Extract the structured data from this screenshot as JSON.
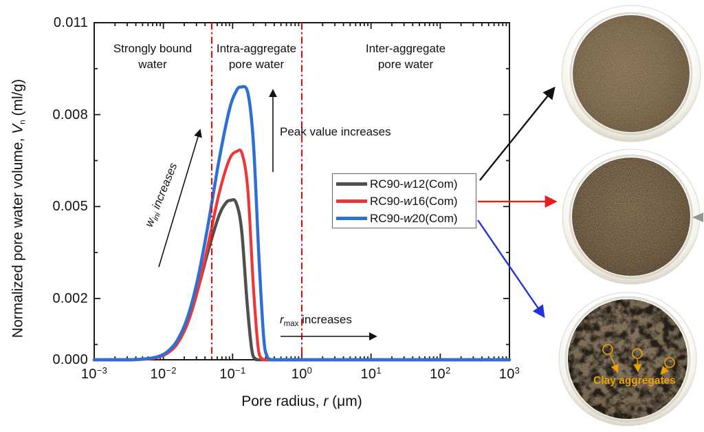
{
  "page": {
    "background": "#ffffff"
  },
  "chart_data": {
    "type": "line",
    "x_scale": "log",
    "x_range_log": [
      -3,
      3
    ],
    "y_range": [
      0,
      0.011
    ],
    "xlabel": "Pore radius, r (μm)",
    "ylabel": "Normalized pore water volume, Vn (ml/g)",
    "x_axis_label": {
      "pre": "Pore radius, ",
      "var": "r",
      "post": " (μm)"
    },
    "y_axis_label": {
      "pre": "Normalized pore water volume, ",
      "var": "V",
      "sub": "n",
      "post": " (ml/g)"
    },
    "x_ticks": [
      {
        "base": "10",
        "exp": "−3"
      },
      {
        "base": "10",
        "exp": "−2"
      },
      {
        "base": "10",
        "exp": "−1"
      },
      {
        "base": "10",
        "exp": "0"
      },
      {
        "base": "10",
        "exp": "1"
      },
      {
        "base": "10",
        "exp": "2"
      },
      {
        "base": "10",
        "exp": "3"
      }
    ],
    "y_ticks": [
      {
        "value": 0.0,
        "label": "0.000"
      },
      {
        "value": 0.002,
        "label": "0.002"
      },
      {
        "value": 0.005,
        "label": "0.005"
      },
      {
        "value": 0.008,
        "label": "0.008"
      },
      {
        "value": 0.011,
        "label": "0.011"
      }
    ],
    "y_minor_ticks": [
      0.0005,
      0.0035,
      0.0065,
      0.0095
    ],
    "grid": "off",
    "legend_position": "inside right-center",
    "region_dividers_um": [
      0.05,
      1
    ],
    "divider_color": "#f40000",
    "regions": [
      {
        "line1": "Strongly bound",
        "line2": "water"
      },
      {
        "line1": "Intra-aggregate",
        "line2": "pore water"
      },
      {
        "line1": "Inter-aggregate",
        "line2": "pore water"
      }
    ],
    "annotations": {
      "wini": {
        "var": "w",
        "sub": "ini",
        "post": " increases"
      },
      "peak": {
        "text": "Peak value increases"
      },
      "rmax": {
        "var": "r",
        "sub": "max",
        "post": " increases"
      }
    },
    "series": [
      {
        "label": {
          "pre": "RC90-",
          "var": "w",
          "post": "12(Com)"
        },
        "color": "#4f4f4f",
        "peak_r_um": 0.093,
        "peak_value_ml_g": 0.0052,
        "points": [
          [
            -3,
            0
          ],
          [
            -2.5,
            0
          ],
          [
            -2.2,
            4e-05
          ],
          [
            -2.1,
            8e-05
          ],
          [
            -1.95,
            0.00024
          ],
          [
            -1.8,
            0.0006
          ],
          [
            -1.65,
            0.00128
          ],
          [
            -1.5,
            0.00232
          ],
          [
            -1.35,
            0.00358
          ],
          [
            -1.2,
            0.00468
          ],
          [
            -1.1,
            0.00511
          ],
          [
            -1.03,
            0.0052
          ],
          [
            -0.95,
            0.00513
          ],
          [
            -0.87,
            0.00424
          ],
          [
            -0.79,
            0.00184
          ],
          [
            -0.72,
            0.00029
          ],
          [
            -0.66,
            2e-05
          ],
          [
            -0.6,
            0
          ],
          [
            0,
            0
          ],
          [
            1,
            0
          ],
          [
            2,
            0
          ],
          [
            3,
            0
          ]
        ]
      },
      {
        "label": {
          "pre": "RC90-",
          "var": "w",
          "post": "16(Com)"
        },
        "color": "#ee3637",
        "peak_r_um": 0.115,
        "peak_value_ml_g": 0.0068,
        "points": [
          [
            -3,
            0
          ],
          [
            -2.5,
            0
          ],
          [
            -2.2,
            3e-05
          ],
          [
            -2.1,
            7e-05
          ],
          [
            -1.95,
            0.0002
          ],
          [
            -1.8,
            0.00052
          ],
          [
            -1.65,
            0.00119
          ],
          [
            -1.5,
            0.0023
          ],
          [
            -1.35,
            0.0038
          ],
          [
            -1.2,
            0.00538
          ],
          [
            -1.05,
            0.00652
          ],
          [
            -0.94,
            0.0068
          ],
          [
            -0.86,
            0.00671
          ],
          [
            -0.78,
            0.00554
          ],
          [
            -0.7,
            0.00241
          ],
          [
            -0.63,
            0.00038
          ],
          [
            -0.57,
            3e-05
          ],
          [
            -0.52,
            0
          ],
          [
            0,
            0
          ],
          [
            1,
            0
          ],
          [
            2,
            0
          ],
          [
            3,
            0
          ]
        ]
      },
      {
        "label": {
          "pre": "RC90-",
          "var": "w",
          "post": "20(Com)"
        },
        "color": "#2e6fd6",
        "peak_r_um": 0.13,
        "peak_value_ml_g": 0.0089,
        "points": [
          [
            -3,
            0
          ],
          [
            -2.5,
            0
          ],
          [
            -2.3,
            2e-05
          ],
          [
            -2.1,
            9e-05
          ],
          [
            -1.95,
            0.00025
          ],
          [
            -1.8,
            0.00063
          ],
          [
            -1.65,
            0.00139
          ],
          [
            -1.5,
            0.00268
          ],
          [
            -1.35,
            0.00446
          ],
          [
            -1.2,
            0.00646
          ],
          [
            -1.05,
            0.00813
          ],
          [
            -0.95,
            0.00876
          ],
          [
            -0.88,
            0.0089
          ],
          [
            -0.78,
            0.00871
          ],
          [
            -0.7,
            0.00711
          ],
          [
            -0.62,
            0.00336
          ],
          [
            -0.55,
            0.00071
          ],
          [
            -0.5,
            0.0001
          ],
          [
            -0.45,
            1e-05
          ],
          [
            -0.4,
            0
          ],
          [
            0,
            0
          ],
          [
            1,
            0
          ],
          [
            2,
            0
          ],
          [
            3,
            0
          ]
        ]
      }
    ]
  },
  "samples": {
    "arrows": [
      {
        "color": "#111111"
      },
      {
        "color": "#e81e1e"
      },
      {
        "color": "#2231dd"
      }
    ],
    "annotation": {
      "text": "Clay aggregates",
      "color": "#eaa200"
    }
  }
}
